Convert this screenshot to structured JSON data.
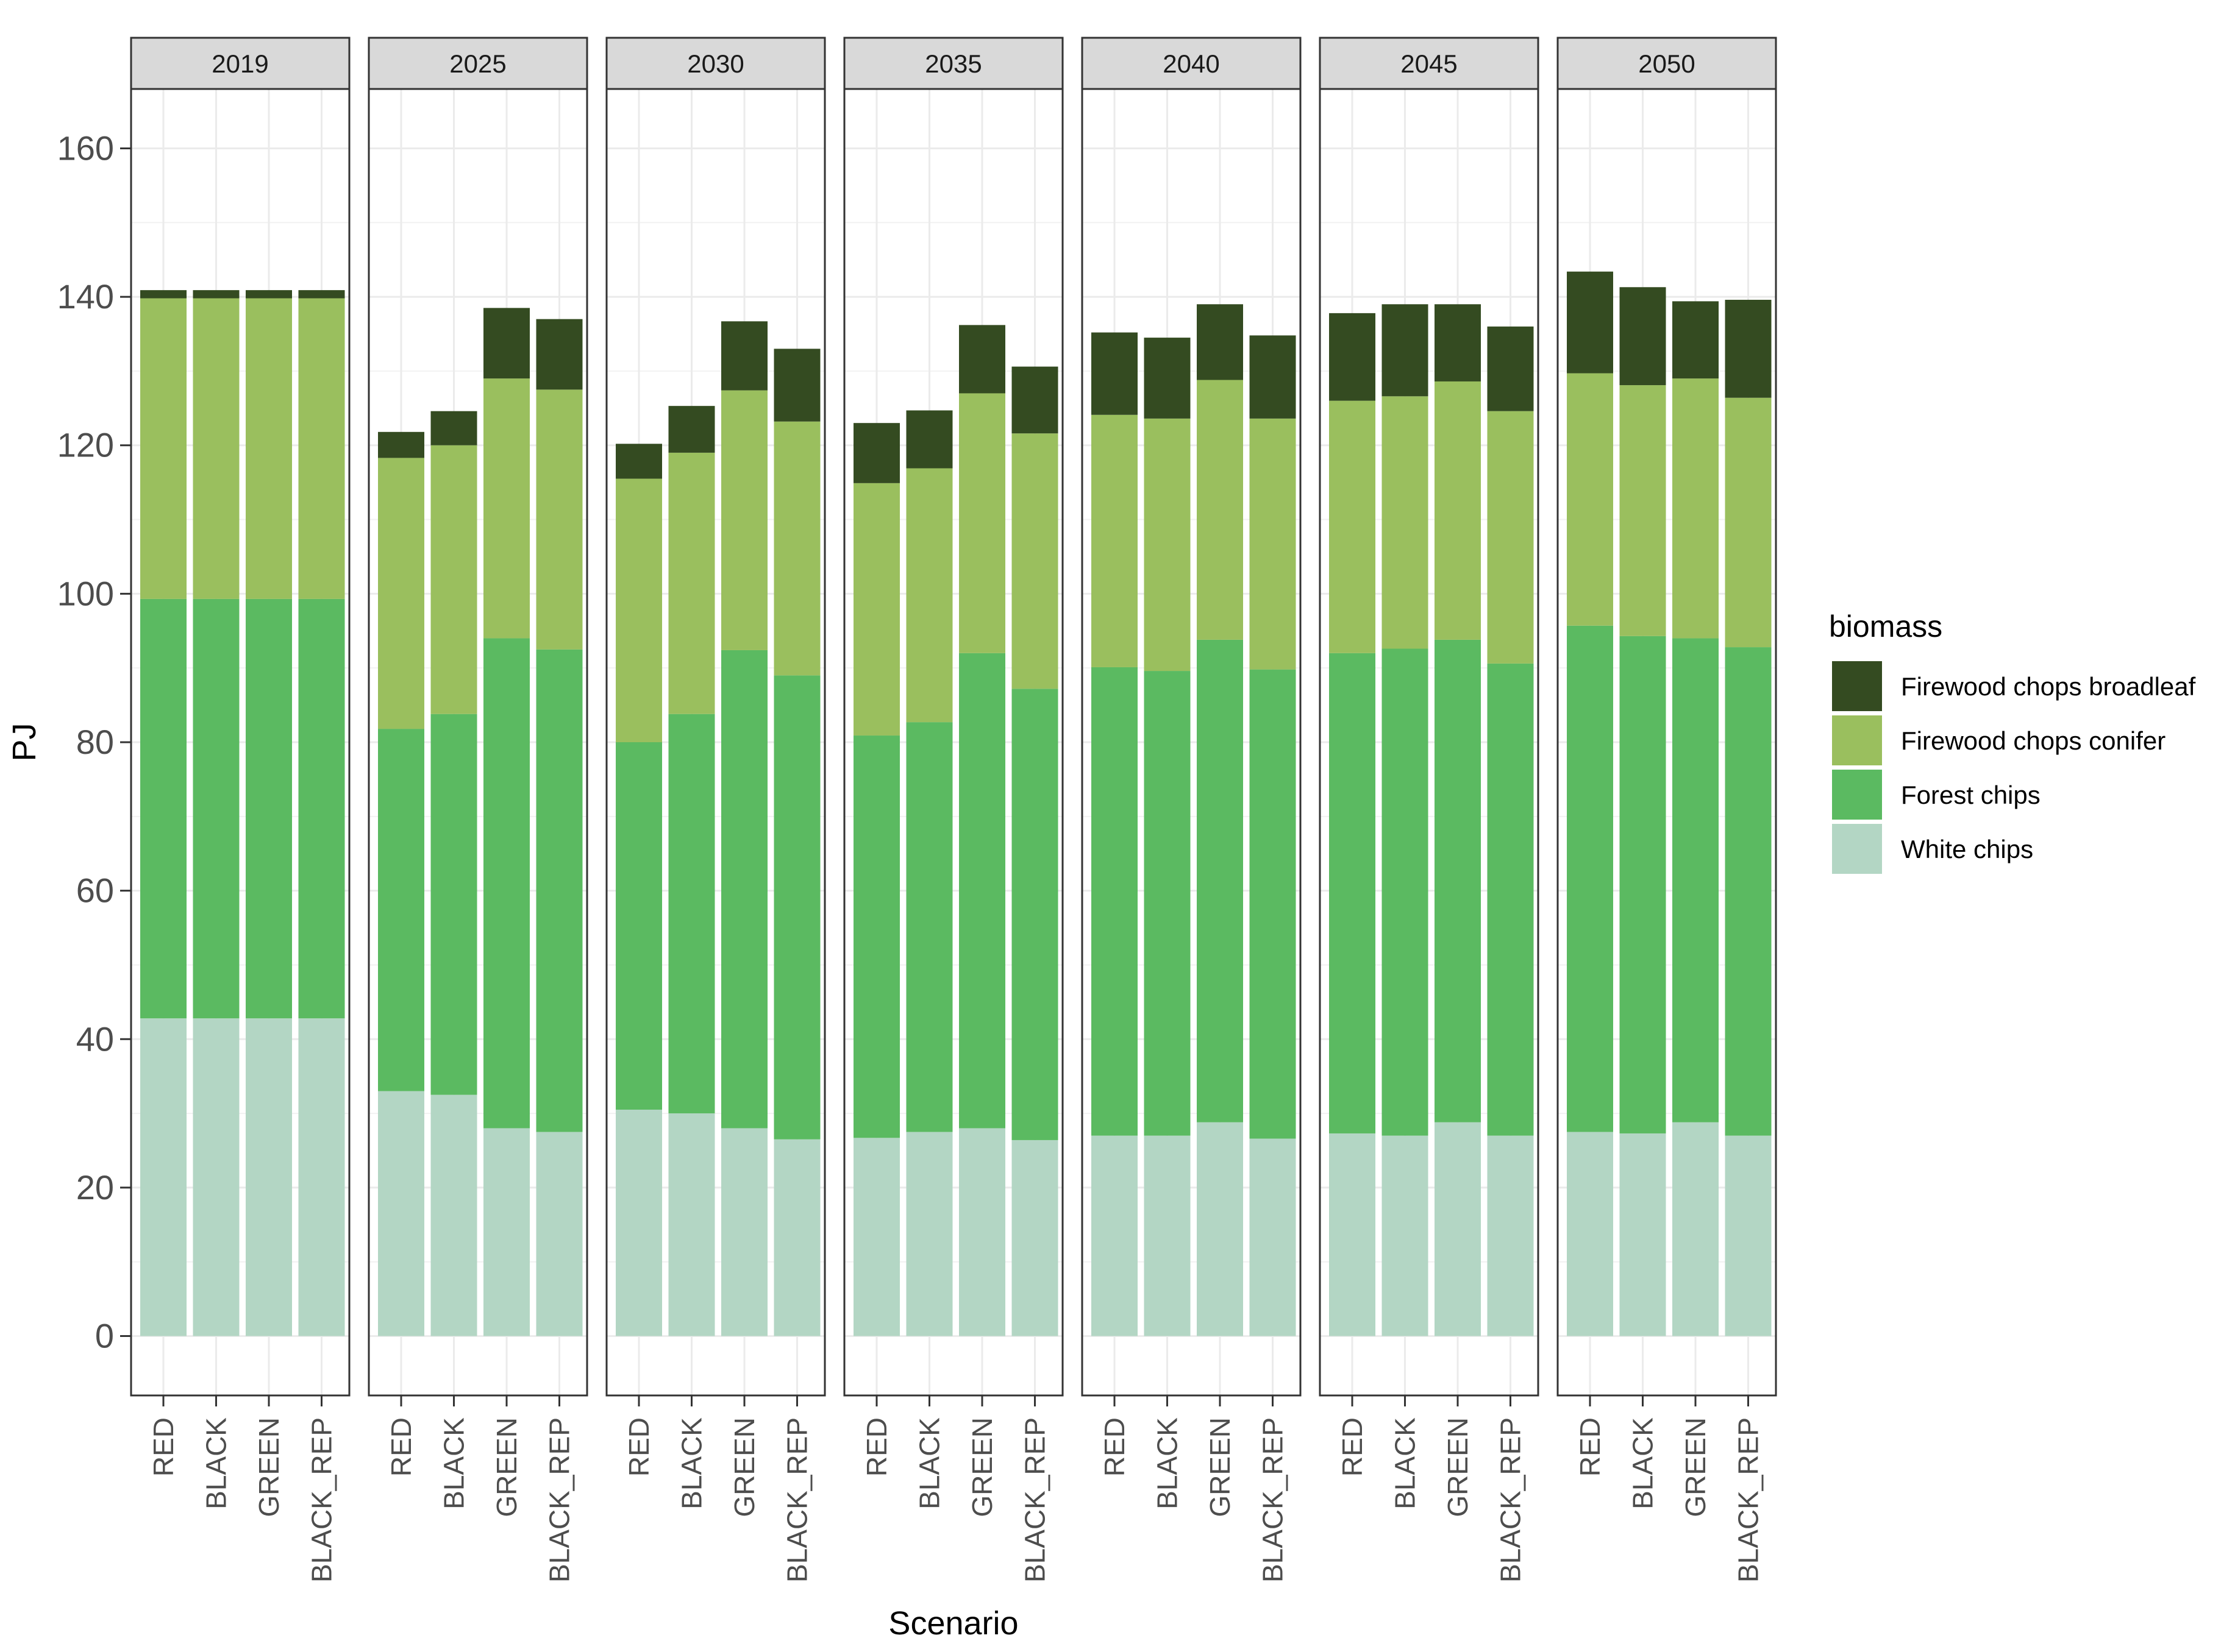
{
  "chart_data": {
    "type": "bar",
    "stacked": true,
    "facets": [
      "2019",
      "2025",
      "2030",
      "2035",
      "2040",
      "2045",
      "2050"
    ],
    "categories": [
      "RED",
      "BLACK",
      "GREEN",
      "BLACK_REP"
    ],
    "xlabel": "Scenario",
    "ylabel": "PJ",
    "ylim": [
      -8,
      168
    ],
    "yticks": [
      0,
      20,
      40,
      60,
      80,
      100,
      120,
      140,
      160
    ],
    "grid": true,
    "legend_title": "biomass",
    "legend_position": "right",
    "series": [
      {
        "name": "White chips",
        "color": "#b3d6c4",
        "values": {
          "2019": [
            42.8,
            42.8,
            42.8,
            42.8
          ],
          "2025": [
            33.0,
            32.5,
            28.0,
            27.5
          ],
          "2030": [
            30.5,
            30.0,
            28.0,
            26.5
          ],
          "2035": [
            26.7,
            27.5,
            28.0,
            26.4
          ],
          "2040": [
            27.0,
            27.0,
            28.8,
            26.6
          ],
          "2045": [
            27.3,
            27.0,
            28.8,
            27.0
          ],
          "2050": [
            27.5,
            27.3,
            28.8,
            27.0
          ]
        }
      },
      {
        "name": "Forest chips",
        "color": "#5bba61",
        "values": {
          "2019": [
            56.5,
            56.5,
            56.5,
            56.5
          ],
          "2025": [
            48.8,
            51.3,
            66.0,
            65.0
          ],
          "2030": [
            49.5,
            53.8,
            64.4,
            62.5
          ],
          "2035": [
            54.2,
            55.2,
            64.0,
            60.8
          ],
          "2040": [
            63.1,
            62.6,
            65.0,
            63.2
          ],
          "2045": [
            64.7,
            65.6,
            65.0,
            63.6
          ],
          "2050": [
            68.2,
            67.0,
            65.2,
            65.8
          ]
        }
      },
      {
        "name": "Firewood chops conifer",
        "color": "#9abf5e",
        "values": {
          "2019": [
            40.5,
            40.5,
            40.5,
            40.5
          ],
          "2025": [
            36.5,
            36.2,
            35.0,
            35.0
          ],
          "2030": [
            35.5,
            35.2,
            35.0,
            34.2
          ],
          "2035": [
            34.0,
            34.2,
            35.0,
            34.4
          ],
          "2040": [
            34.0,
            34.0,
            35.0,
            33.8
          ],
          "2045": [
            34.0,
            34.0,
            34.8,
            34.0
          ],
          "2050": [
            34.0,
            33.8,
            35.0,
            33.6
          ]
        }
      },
      {
        "name": "Firewood chops broadleaf",
        "color": "#344b21",
        "values": {
          "2019": [
            1.1,
            1.1,
            1.1,
            1.1
          ],
          "2025": [
            3.5,
            4.6,
            9.5,
            9.5
          ],
          "2030": [
            4.7,
            6.3,
            9.3,
            9.8
          ],
          "2035": [
            8.1,
            7.8,
            9.2,
            9.0
          ],
          "2040": [
            11.1,
            10.9,
            10.2,
            11.2
          ],
          "2045": [
            11.8,
            12.4,
            10.4,
            11.4
          ],
          "2050": [
            13.7,
            13.2,
            10.4,
            13.2
          ]
        }
      }
    ]
  }
}
